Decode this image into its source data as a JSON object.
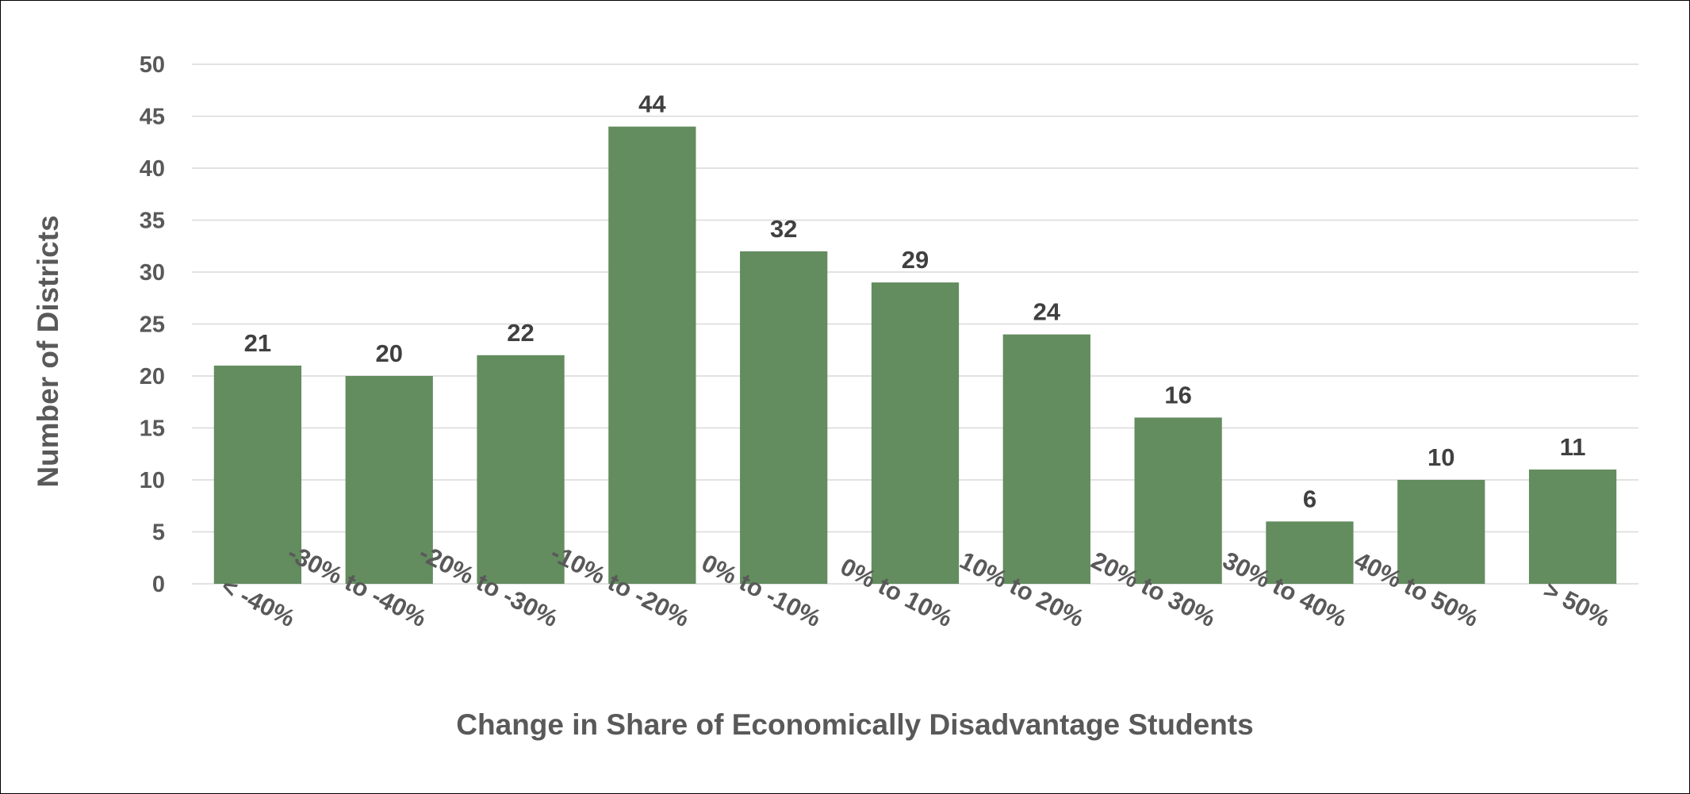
{
  "chart_data": {
    "type": "bar",
    "title": "",
    "xlabel": "Change  in Share of Economically Disadvantage Students",
    "ylabel": "Number of Districts",
    "categories": [
      "< -40%",
      "-30% to -40%",
      "-20% to -30%",
      "-10% to -20%",
      "0% to -10%",
      "0% to 10%",
      "10% to 20%",
      "20% to 30%",
      "30% to 40%",
      "40% to 50%",
      ">  50%"
    ],
    "values": [
      21,
      20,
      22,
      44,
      32,
      29,
      24,
      16,
      6,
      10,
      11
    ],
    "ylim": [
      0,
      50
    ],
    "yticks": [
      0,
      5,
      10,
      15,
      20,
      25,
      30,
      35,
      40,
      45,
      50
    ],
    "grid": true,
    "legend": "none",
    "data_labels": true,
    "colors": {
      "bar": "#638C5F",
      "grid": "#D9D9D9",
      "axis_text": "#595959",
      "data_label": "#404040"
    }
  }
}
